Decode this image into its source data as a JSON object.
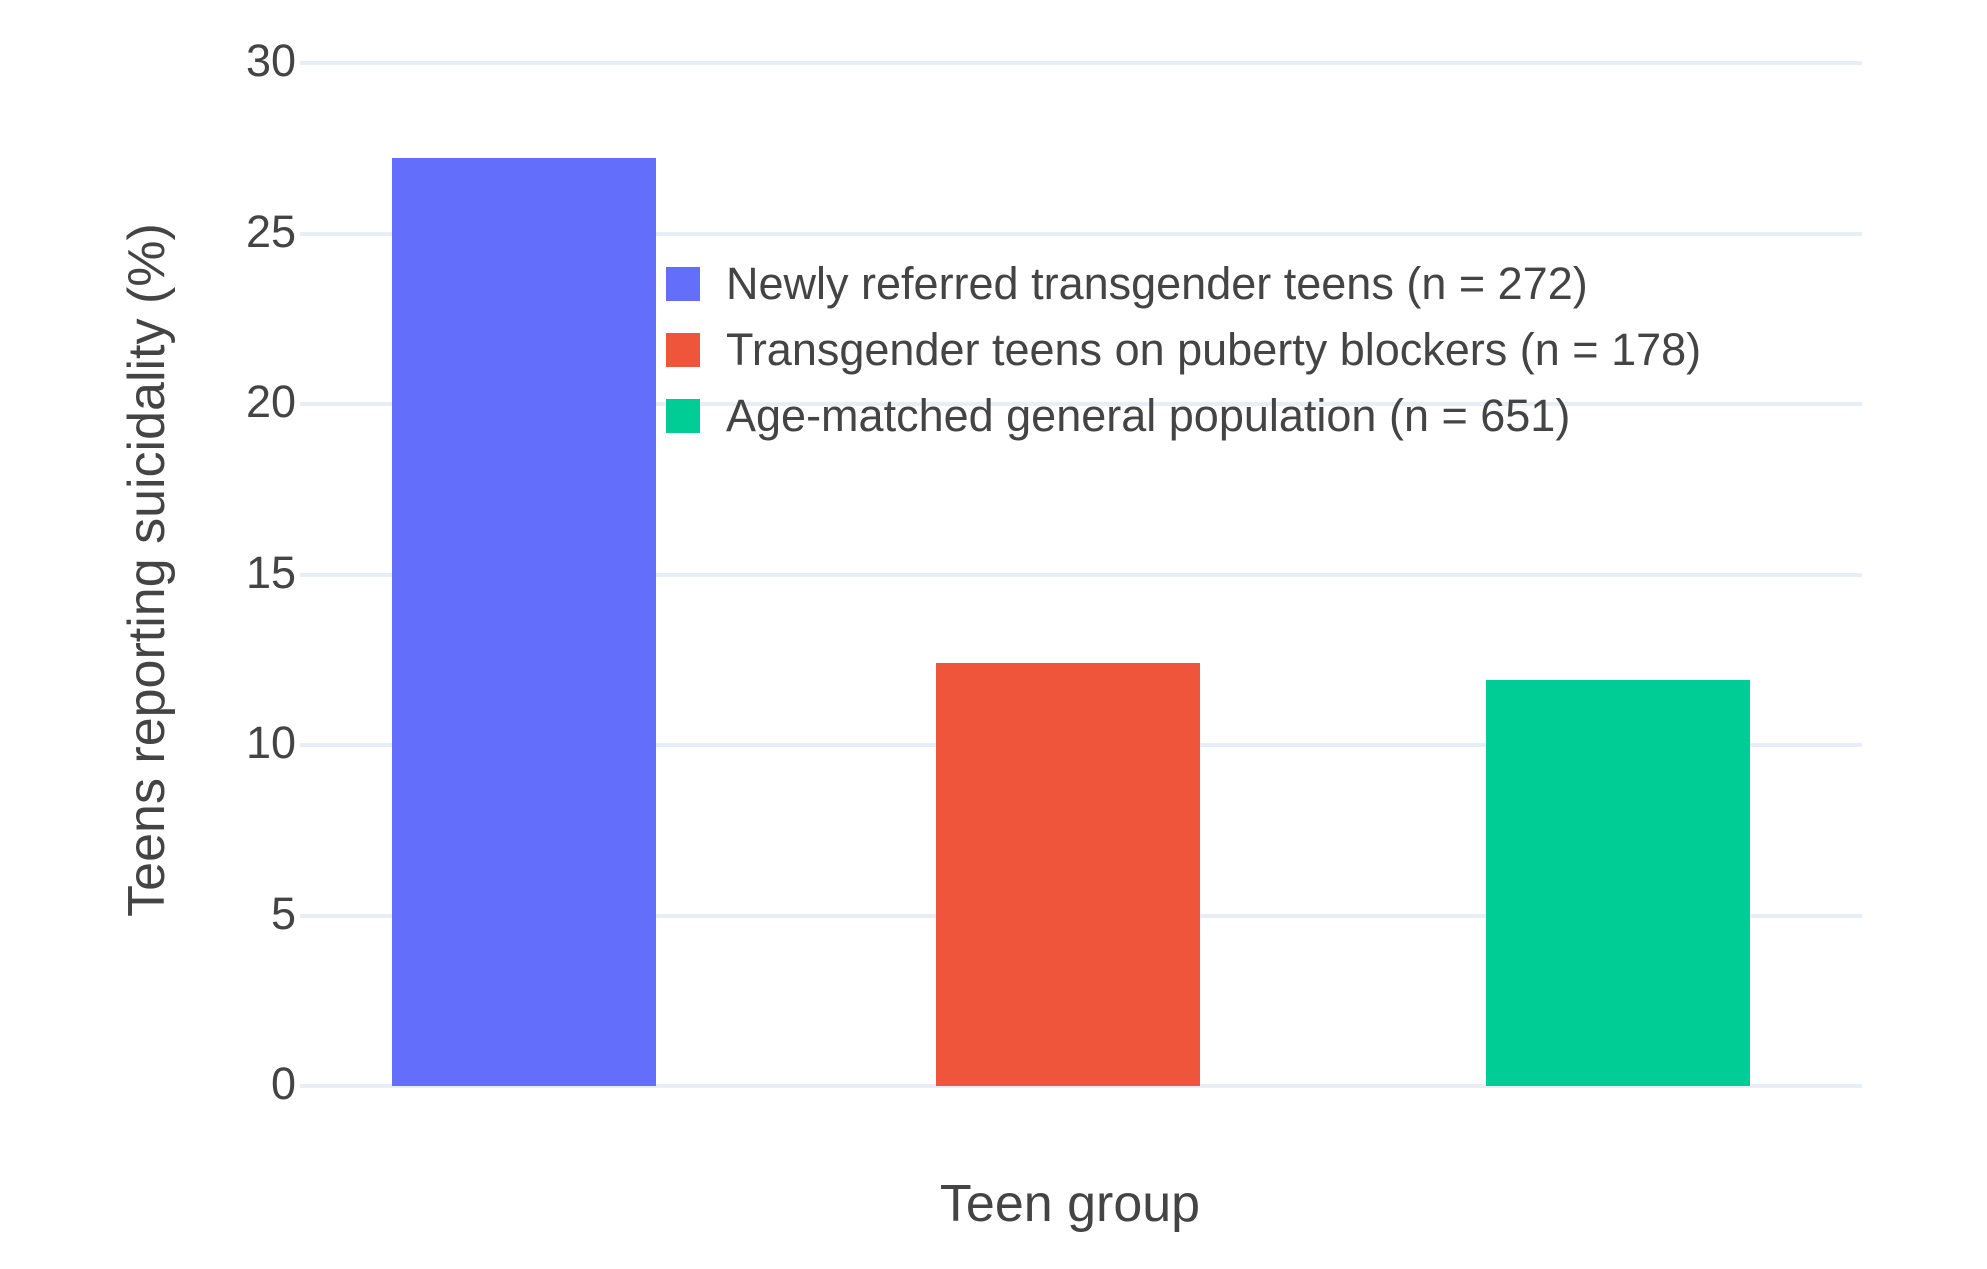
{
  "chart_data": {
    "type": "bar",
    "title": "",
    "categories": [
      "Newly referred transgender teens (n = 272)",
      "Transgender teens on puberty blockers (n = 178)",
      "Age-matched general population (n = 651)"
    ],
    "values": [
      27.2,
      12.4,
      11.9
    ],
    "colors": [
      "#636EFA",
      "#EF553B",
      "#00CC96"
    ],
    "xlabel": "Teen group",
    "ylabel": "Teens reporting suicidality (%)",
    "ylim": [
      0,
      30
    ],
    "yticks": [
      0,
      5,
      10,
      15,
      20,
      25,
      30
    ],
    "grid": true,
    "gridline_color": "#E8EDF6",
    "text_color": "#444444",
    "background_color": "#FFFFFF",
    "legend_position": "inside-top-center",
    "legend_items": [
      {
        "label": "Newly referred transgender teens (n = 272)",
        "color": "#636EFA"
      },
      {
        "label": "Transgender teens on puberty blockers (n = 178)",
        "color": "#EF553B"
      },
      {
        "label": "Age-matched general population (n = 651)",
        "color": "#00CC96"
      }
    ]
  }
}
